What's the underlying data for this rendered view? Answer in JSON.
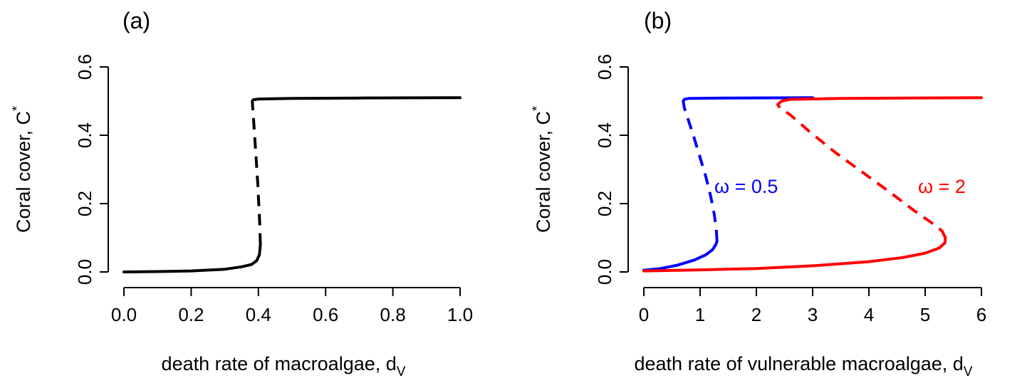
{
  "chart_data": [
    {
      "type": "line",
      "panel_label": "(a)",
      "xlabel": "death rate of macroalgae,  d",
      "xlabel_sub": "V",
      "ylabel": "Coral cover,  C",
      "ylabel_sup": "*",
      "xlim": [
        0,
        1
      ],
      "ylim": [
        0,
        0.6
      ],
      "xticks": [
        0,
        0.2,
        0.4,
        0.6,
        0.8,
        1.0
      ],
      "xtick_labels": [
        "0.0",
        "0.2",
        "0.4",
        "0.6",
        "0.8",
        "1.0"
      ],
      "yticks": [
        0,
        0.2,
        0.4,
        0.6
      ],
      "ytick_labels": [
        "0.0",
        "0.2",
        "0.4",
        "0.6"
      ],
      "grid": false,
      "series": [
        {
          "color": "#000000",
          "segments": [
            {
              "style": "solid",
              "points": [
                [
                  0,
                  0.0
                ],
                [
                  0.1,
                  0.001
                ],
                [
                  0.2,
                  0.003
                ],
                [
                  0.3,
                  0.008
                ],
                [
                  0.35,
                  0.015
                ],
                [
                  0.38,
                  0.022
                ],
                [
                  0.395,
                  0.033
                ],
                [
                  0.403,
                  0.05
                ],
                [
                  0.406,
                  0.08
                ]
              ]
            },
            {
              "style": "dashed",
              "points": [
                [
                  0.406,
                  0.08
                ],
                [
                  0.404,
                  0.14
                ],
                [
                  0.401,
                  0.2
                ],
                [
                  0.398,
                  0.26
                ],
                [
                  0.394,
                  0.32
                ],
                [
                  0.39,
                  0.38
                ],
                [
                  0.386,
                  0.44
                ],
                [
                  0.383,
                  0.48
                ],
                [
                  0.382,
                  0.5
                ]
              ]
            },
            {
              "style": "solid",
              "points": [
                [
                  0.382,
                  0.5
                ],
                [
                  0.385,
                  0.504
                ],
                [
                  0.4,
                  0.506
                ],
                [
                  0.5,
                  0.508
                ],
                [
                  0.7,
                  0.509
                ],
                [
                  1.0,
                  0.51
                ]
              ]
            }
          ]
        }
      ]
    },
    {
      "type": "line",
      "panel_label": "(b)",
      "xlabel": "death rate of vulnerable macroalgae,  d",
      "xlabel_sub": "V",
      "ylabel": "Coral cover,  C",
      "ylabel_sup": "*",
      "xlim": [
        0,
        6
      ],
      "ylim": [
        0,
        0.6
      ],
      "xticks": [
        0,
        1,
        2,
        3,
        4,
        5,
        6
      ],
      "xtick_labels": [
        "0",
        "1",
        "2",
        "3",
        "4",
        "5",
        "6"
      ],
      "yticks": [
        0,
        0.2,
        0.4,
        0.6
      ],
      "ytick_labels": [
        "0.0",
        "0.2",
        "0.4",
        "0.6"
      ],
      "grid": false,
      "series": [
        {
          "label": "ω = 0.5",
          "color": "#0000ff",
          "segments": [
            {
              "style": "solid",
              "points": [
                [
                  0,
                  0.005
                ],
                [
                  0.3,
                  0.01
                ],
                [
                  0.6,
                  0.02
                ],
                [
                  0.9,
                  0.035
                ],
                [
                  1.1,
                  0.05
                ],
                [
                  1.22,
                  0.065
                ],
                [
                  1.28,
                  0.08
                ],
                [
                  1.3,
                  0.09
                ]
              ]
            },
            {
              "style": "dashed",
              "points": [
                [
                  1.3,
                  0.09
                ],
                [
                  1.29,
                  0.12
                ],
                [
                  1.25,
                  0.17
                ],
                [
                  1.19,
                  0.22
                ],
                [
                  1.1,
                  0.28
                ],
                [
                  0.99,
                  0.34
                ],
                [
                  0.88,
                  0.4
                ],
                [
                  0.78,
                  0.45
                ],
                [
                  0.72,
                  0.48
                ],
                [
                  0.7,
                  0.5
                ]
              ]
            },
            {
              "style": "solid",
              "points": [
                [
                  0.7,
                  0.5
                ],
                [
                  0.72,
                  0.505
                ],
                [
                  0.8,
                  0.508
                ],
                [
                  1.5,
                  0.509
                ],
                [
                  3,
                  0.51
                ]
              ]
            }
          ]
        },
        {
          "label": "ω = 2",
          "color": "#ff0000",
          "segments": [
            {
              "style": "solid",
              "points": [
                [
                  0,
                  0.003
                ],
                [
                  1,
                  0.006
                ],
                [
                  2,
                  0.01
                ],
                [
                  3,
                  0.018
                ],
                [
                  4,
                  0.03
                ],
                [
                  4.6,
                  0.042
                ],
                [
                  5,
                  0.055
                ],
                [
                  5.25,
                  0.07
                ],
                [
                  5.35,
                  0.085
                ],
                [
                  5.36,
                  0.1
                ]
              ]
            },
            {
              "style": "dashed",
              "points": [
                [
                  5.36,
                  0.1
                ],
                [
                  5.3,
                  0.12
                ],
                [
                  5.15,
                  0.14
                ],
                [
                  4.8,
                  0.18
                ],
                [
                  4.4,
                  0.23
                ],
                [
                  3.9,
                  0.29
                ],
                [
                  3.4,
                  0.35
                ],
                [
                  2.95,
                  0.41
                ],
                [
                  2.6,
                  0.46
                ],
                [
                  2.42,
                  0.48
                ],
                [
                  2.38,
                  0.49
                ]
              ]
            },
            {
              "style": "solid",
              "points": [
                [
                  2.38,
                  0.49
                ],
                [
                  2.45,
                  0.5
                ],
                [
                  2.6,
                  0.505
                ],
                [
                  3.5,
                  0.508
                ],
                [
                  6,
                  0.51
                ]
              ]
            }
          ]
        }
      ]
    }
  ]
}
